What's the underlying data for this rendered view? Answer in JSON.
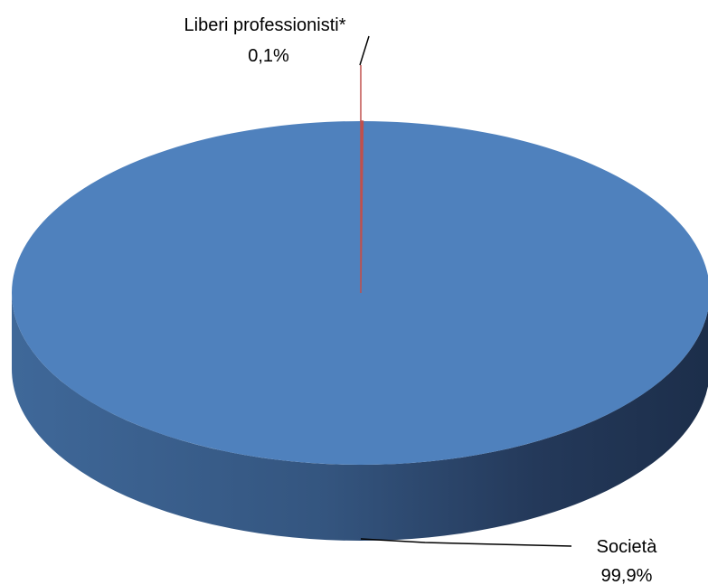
{
  "chart_data": {
    "type": "pie",
    "style": "3d",
    "title": "",
    "slices": [
      {
        "label": "Liberi professionisti*",
        "value": 0.1,
        "value_label": "0,1%",
        "color": "#c0504d"
      },
      {
        "label": "Società",
        "value": 99.9,
        "value_label": "99,9%",
        "color": "#4f81bd"
      }
    ],
    "legend": "none"
  }
}
